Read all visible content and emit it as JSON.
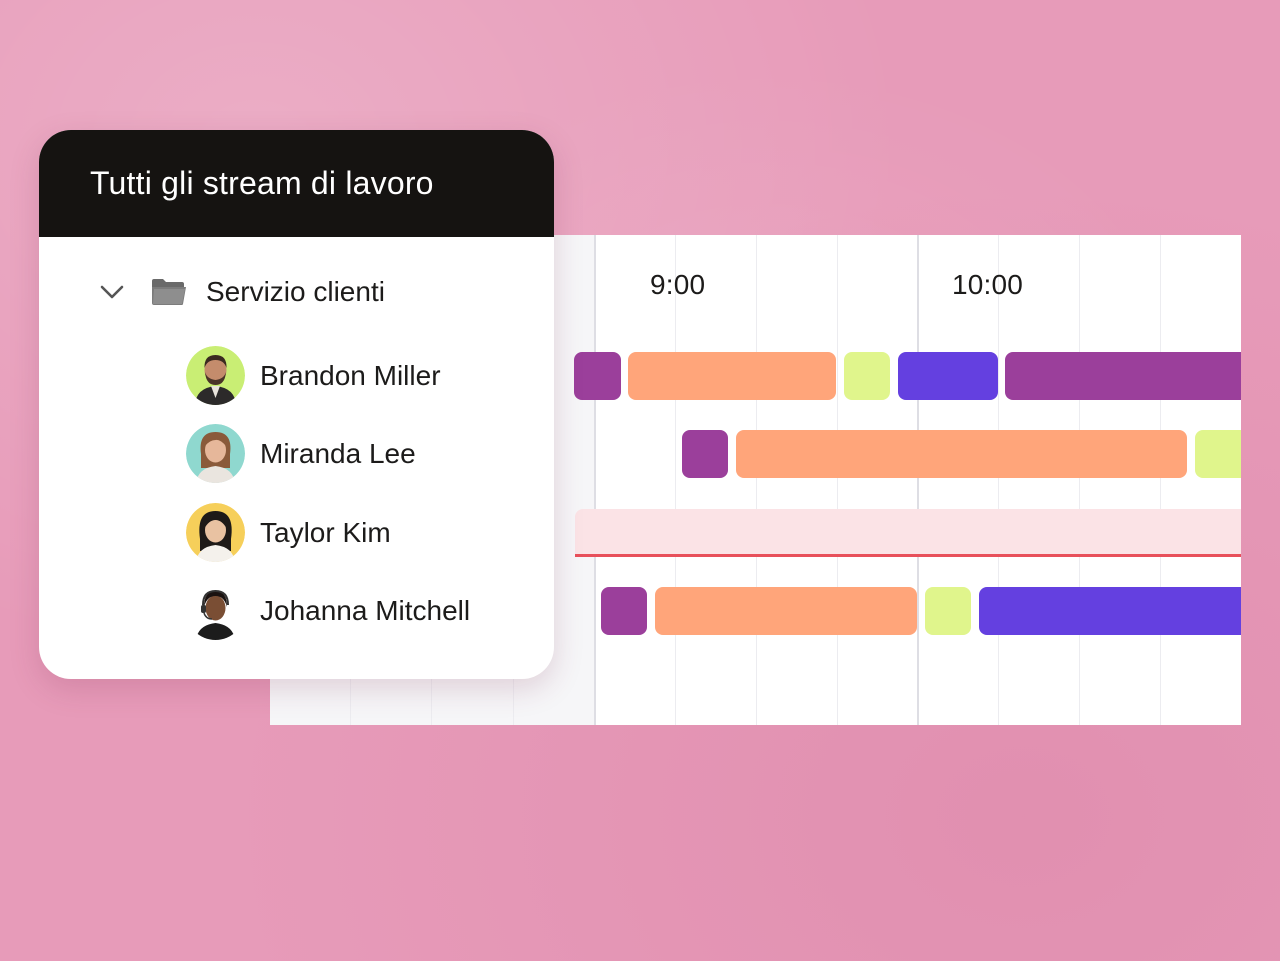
{
  "panel": {
    "title": "Tutti gli stream di lavoro",
    "group": {
      "label": "Servizio clienti",
      "icon": "folder-icon",
      "expand_icon": "chevron-down-icon"
    },
    "people": [
      {
        "name": "Brandon Miller",
        "avatar_bg": "#c9ee74"
      },
      {
        "name": "Miranda Lee",
        "avatar_bg": "#8fd8cf"
      },
      {
        "name": "Taylor Kim",
        "avatar_bg": "#f6cf5a"
      },
      {
        "name": "Johanna Mitchell",
        "avatar_bg": "#ffffff"
      }
    ]
  },
  "timeline": {
    "time_labels": [
      "9:00",
      "10:00"
    ]
  },
  "colors": {
    "purple": "#9b3f9b",
    "orange": "#ffa57a",
    "lime": "#e0f58c",
    "blue": "#6440e0",
    "absent": "#fbe3e6",
    "absent_line": "#e8505b"
  }
}
